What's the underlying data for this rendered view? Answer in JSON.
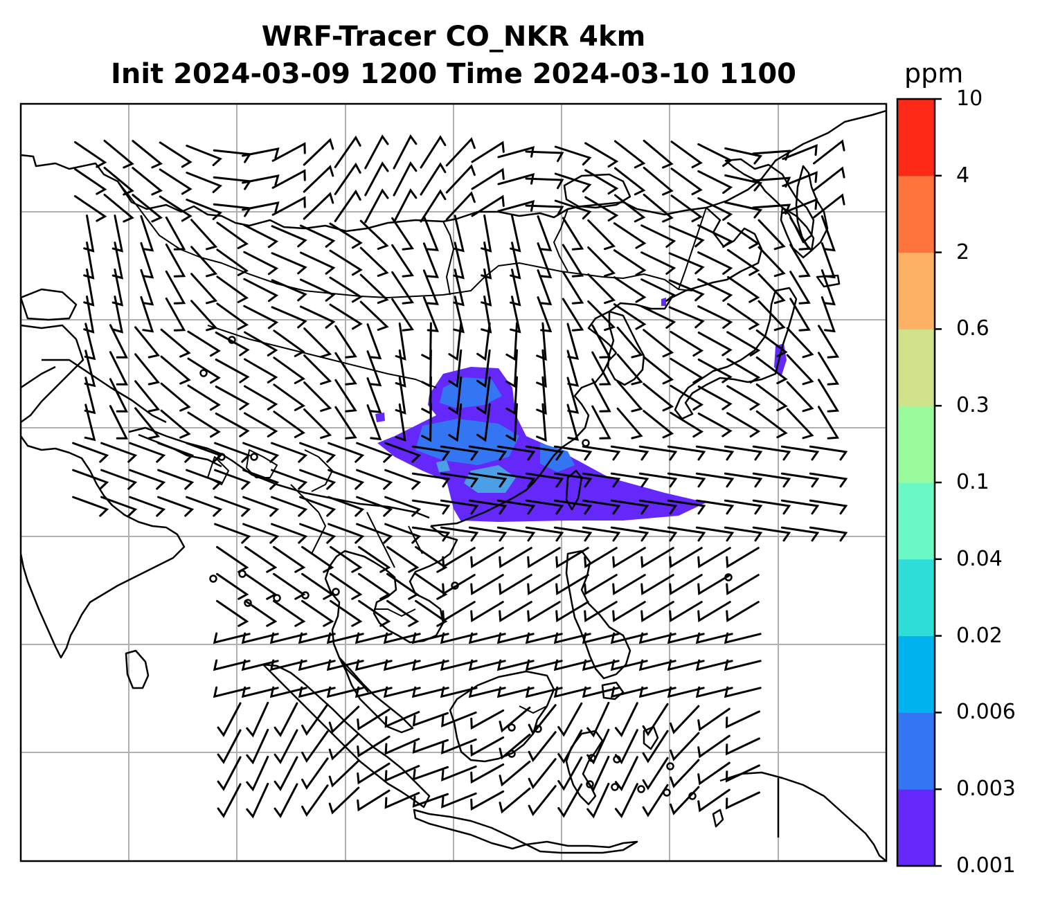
{
  "title": {
    "line1": "WRF-Tracer CO_NKR 4km",
    "line2": "Init 2024-03-09 1200 Time 2024-03-10 1100"
  },
  "colorbar": {
    "units": "ppm",
    "tick_labels": [
      "0.001",
      "0.003",
      "0.006",
      "0.02",
      "0.04",
      "0.1",
      "0.3",
      "0.6",
      "2",
      "4",
      "10"
    ],
    "colors": [
      "#6528FA",
      "#3375F2",
      "#00B2EE",
      "#2EDCD8",
      "#6AF8C4",
      "#9AFB9C",
      "#CFE28A",
      "#FDB165",
      "#FF743D",
      "#FF2918"
    ]
  },
  "map": {
    "gridline_color": "#b0b0b0",
    "plume_colors": [
      "#6528FA",
      "#3375F2",
      "#4A9FE6"
    ],
    "wind_barbs": "black wind barbs over domain; circles denote calm"
  }
}
